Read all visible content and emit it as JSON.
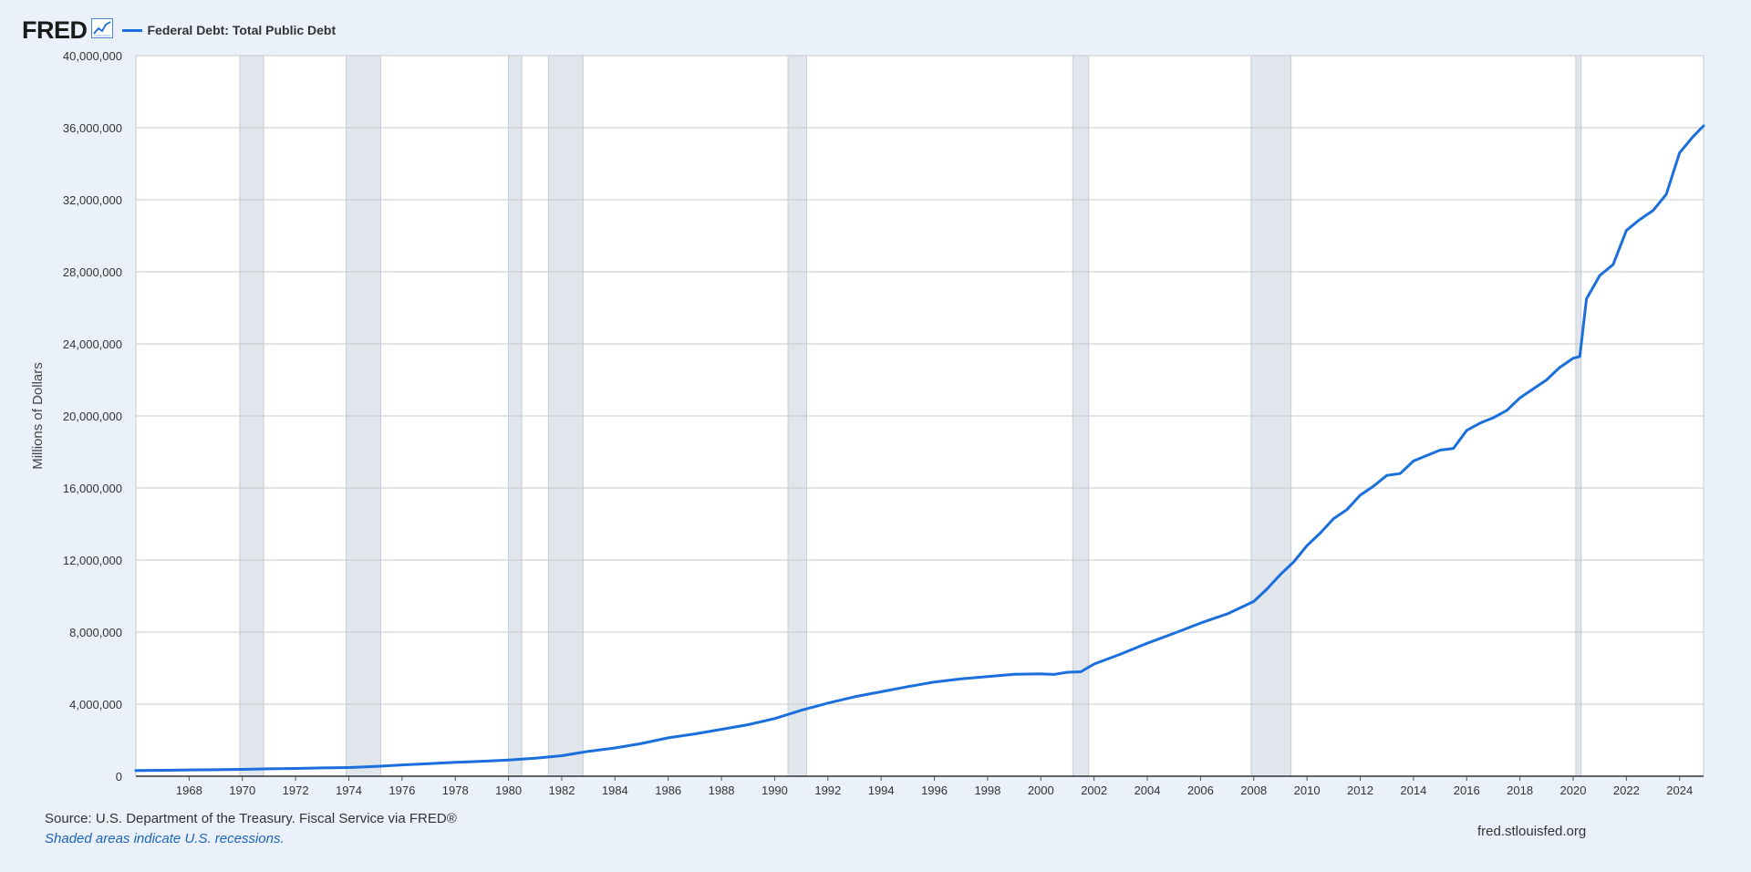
{
  "header": {
    "logo_text": "FRED",
    "logo_icon": "line-chart-icon",
    "series_label": "Federal Debt: Total Public Debt"
  },
  "footer": {
    "source": "Source: U.S. Department of the Treasury. Fiscal Service via FRED®",
    "recession_note": "Shaded areas indicate U.S. recessions.",
    "site_url": "fred.stlouisfed.org"
  },
  "colors": {
    "line": "#1a6fdc",
    "recession": "#e1e5ec",
    "background": "#ebf1fa",
    "plot_background": "#ffffff",
    "grid": "#c8c8c8"
  },
  "chart_data": {
    "type": "line",
    "title": "Federal Debt: Total Public Debt",
    "xlabel": "",
    "ylabel": "Millions of Dollars",
    "xlim": [
      1966.0,
      2024.9
    ],
    "ylim": [
      0,
      40000000
    ],
    "yticks": [
      0,
      4000000,
      8000000,
      12000000,
      16000000,
      20000000,
      24000000,
      28000000,
      32000000,
      36000000,
      40000000
    ],
    "ytick_labels": [
      "0",
      "4,000,000",
      "8,000,000",
      "12,000,000",
      "16,000,000",
      "20,000,000",
      "24,000,000",
      "28,000,000",
      "32,000,000",
      "36,000,000",
      "40,000,000"
    ],
    "xticks": [
      1968,
      1970,
      1972,
      1974,
      1976,
      1978,
      1980,
      1982,
      1984,
      1986,
      1988,
      1990,
      1992,
      1994,
      1996,
      1998,
      2000,
      2002,
      2004,
      2006,
      2008,
      2010,
      2012,
      2014,
      2016,
      2018,
      2020,
      2022,
      2024
    ],
    "xtick_labels": [
      "1968",
      "1970",
      "1972",
      "1974",
      "1976",
      "1978",
      "1980",
      "1982",
      "1984",
      "1986",
      "1988",
      "1990",
      "1992",
      "1994",
      "1996",
      "1998",
      "2000",
      "2002",
      "2004",
      "2006",
      "2008",
      "2010",
      "2012",
      "2014",
      "2016",
      "2018",
      "2020",
      "2022",
      "2024"
    ],
    "grid": true,
    "legend": "top-left",
    "recessions": [
      [
        1969.9,
        1970.8
      ],
      [
        1973.9,
        1975.2
      ],
      [
        1980.0,
        1980.5
      ],
      [
        1981.5,
        1982.8
      ],
      [
        1990.5,
        1991.2
      ],
      [
        2001.2,
        2001.8
      ],
      [
        2007.9,
        2009.4
      ],
      [
        2020.1,
        2020.3
      ]
    ],
    "series": [
      {
        "name": "Federal Debt: Total Public Debt",
        "x": [
          1966.0,
          1967.0,
          1968.0,
          1969.0,
          1970.0,
          1971.0,
          1972.0,
          1973.0,
          1974.0,
          1975.0,
          1976.0,
          1977.0,
          1978.0,
          1979.0,
          1980.0,
          1981.0,
          1982.0,
          1983.0,
          1984.0,
          1985.0,
          1986.0,
          1987.0,
          1988.0,
          1989.0,
          1990.0,
          1991.0,
          1992.0,
          1993.0,
          1994.0,
          1995.0,
          1996.0,
          1997.0,
          1998.0,
          1999.0,
          2000.0,
          2000.5,
          2001.0,
          2001.5,
          2002.0,
          2003.0,
          2004.0,
          2005.0,
          2006.0,
          2007.0,
          2008.0,
          2008.5,
          2009.0,
          2009.5,
          2010.0,
          2010.5,
          2011.0,
          2011.5,
          2012.0,
          2012.5,
          2013.0,
          2013.5,
          2014.0,
          2014.5,
          2015.0,
          2015.5,
          2016.0,
          2016.5,
          2017.0,
          2017.5,
          2018.0,
          2018.5,
          2019.0,
          2019.5,
          2020.0,
          2020.25,
          2020.5,
          2021.0,
          2021.5,
          2022.0,
          2022.5,
          2023.0,
          2023.5,
          2024.0,
          2024.5,
          2024.9
        ],
        "y": [
          320000,
          330000,
          350000,
          360000,
          380000,
          410000,
          430000,
          460000,
          480000,
          540000,
          630000,
          700000,
          770000,
          830000,
          900000,
          1000000,
          1140000,
          1380000,
          1570000,
          1820000,
          2130000,
          2350000,
          2600000,
          2860000,
          3200000,
          3660000,
          4060000,
          4410000,
          4690000,
          4970000,
          5230000,
          5410000,
          5530000,
          5660000,
          5680000,
          5650000,
          5770000,
          5800000,
          6230000,
          6780000,
          7380000,
          7930000,
          8500000,
          9010000,
          9700000,
          10400000,
          11200000,
          11900000,
          12800000,
          13500000,
          14300000,
          14800000,
          15600000,
          16100000,
          16700000,
          16800000,
          17500000,
          17800000,
          18100000,
          18200000,
          19200000,
          19600000,
          19900000,
          20300000,
          21000000,
          21500000,
          22000000,
          22700000,
          23200000,
          23300000,
          26500000,
          27800000,
          28400000,
          30300000,
          30900000,
          31400000,
          32300000,
          34600000,
          35500000,
          36100000
        ]
      }
    ]
  }
}
